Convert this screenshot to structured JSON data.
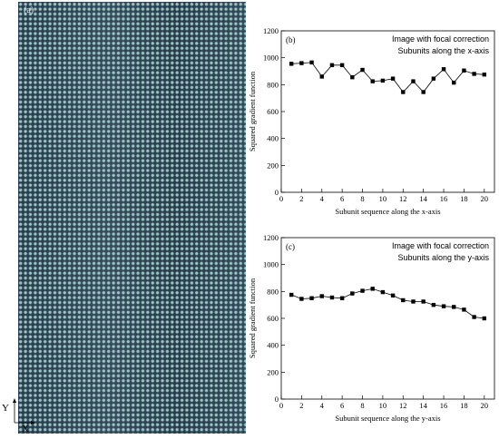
{
  "image": {
    "panel_label": "(a)",
    "axis_y": "Y",
    "axis_x": "X"
  },
  "chart_data": [
    {
      "type": "line",
      "panel_label": "(b)",
      "legend": [
        "Image with focal correction",
        "Subunits along the x-axis"
      ],
      "xlabel": "Subunit sequence along the x-axis",
      "ylabel": "Squared gradient function",
      "xlim": [
        0,
        21
      ],
      "ylim": [
        0,
        1200
      ],
      "xticks": [
        0,
        2,
        4,
        6,
        8,
        10,
        12,
        14,
        16,
        18,
        20
      ],
      "yticks": [
        0,
        200,
        400,
        600,
        800,
        1000,
        1200
      ],
      "x": [
        1,
        2,
        3,
        4,
        5,
        6,
        7,
        8,
        9,
        10,
        11,
        12,
        13,
        14,
        15,
        16,
        17,
        18,
        19,
        20
      ],
      "values": [
        955,
        960,
        965,
        860,
        945,
        945,
        855,
        910,
        825,
        830,
        845,
        745,
        825,
        745,
        845,
        915,
        815,
        905,
        880,
        875
      ],
      "marker": "square"
    },
    {
      "type": "line",
      "panel_label": "(c)",
      "legend": [
        "Image with focal correction",
        "Subunits along the y-axis"
      ],
      "xlabel": "Subunit sequence along the y-axis",
      "ylabel": "Squared gradient function",
      "xlim": [
        0,
        21
      ],
      "ylim": [
        0,
        1200
      ],
      "xticks": [
        0,
        2,
        4,
        6,
        8,
        10,
        12,
        14,
        16,
        18,
        20
      ],
      "yticks": [
        0,
        200,
        400,
        600,
        800,
        1000,
        1200
      ],
      "x": [
        1,
        2,
        3,
        4,
        5,
        6,
        7,
        8,
        9,
        10,
        11,
        12,
        13,
        14,
        15,
        16,
        17,
        18,
        19,
        20
      ],
      "values": [
        775,
        745,
        750,
        765,
        755,
        750,
        785,
        805,
        820,
        795,
        770,
        735,
        725,
        725,
        700,
        690,
        685,
        665,
        610,
        600
      ],
      "marker": "square"
    }
  ]
}
